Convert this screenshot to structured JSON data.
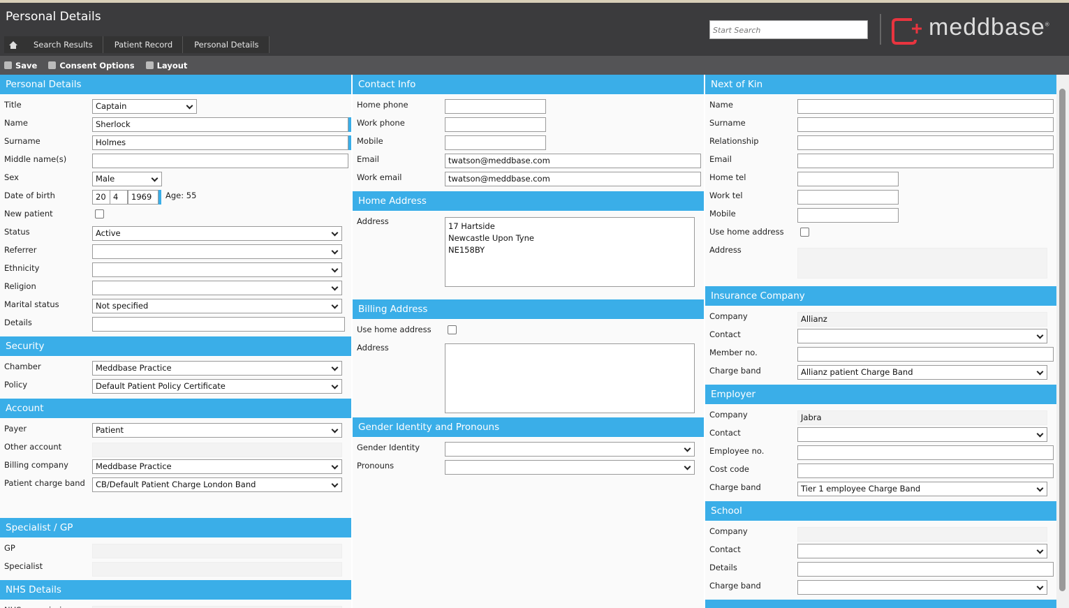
{
  "header": {
    "title": "Personal Details",
    "breadcrumbs": [
      "Search Results",
      "Patient Record",
      "Personal Details"
    ],
    "search_placeholder": "Start Search",
    "logo": "meddbase",
    "logo_mark": "®"
  },
  "toolbar": [
    "Save",
    "Consent Options",
    "Layout"
  ],
  "columns": [
    {
      "sections": [
        {
          "title": "Personal Details",
          "fields": [
            {
              "label": "Title",
              "type": "select",
              "value": "Captain"
            },
            {
              "label": "Name",
              "type": "text",
              "value": "Sherlock",
              "required": true
            },
            {
              "label": "Surname",
              "type": "text",
              "value": "Holmes",
              "required": true
            },
            {
              "label": "Middle name(s)",
              "type": "text"
            },
            {
              "label": "Sex",
              "type": "select",
              "value": "Male"
            },
            {
              "label": "Date of birth",
              "type": "dob",
              "day": "20",
              "month": "4",
              "year": "1969",
              "age": "Age: 55",
              "required": true
            },
            {
              "label": "New patient",
              "type": "checkbox"
            },
            {
              "label": "Status",
              "type": "select",
              "value": "Active"
            },
            {
              "label": "Referrer",
              "type": "select"
            },
            {
              "label": "Ethnicity",
              "type": "select"
            },
            {
              "label": "Religion",
              "type": "select"
            },
            {
              "label": "Marital status",
              "type": "select",
              "value": "Not specified"
            },
            {
              "label": "Details",
              "type": "text"
            }
          ]
        },
        {
          "title": "Security",
          "fields": [
            {
              "label": "Chamber",
              "type": "select",
              "value": "Meddbase Practice"
            },
            {
              "label": "Policy",
              "type": "select",
              "value": "Default Patient Policy Certificate"
            }
          ]
        },
        {
          "title": "Account",
          "fields": [
            {
              "label": "Payer",
              "type": "select",
              "value": "Patient"
            },
            {
              "label": "Other account",
              "type": "readonly"
            },
            {
              "label": "Billing company",
              "type": "select",
              "value": "Meddbase Practice"
            },
            {
              "label": "Patient charge band",
              "type": "select",
              "value": "CB/Default Patient Charge London Band"
            }
          ]
        },
        {
          "title": "Specialist / GP",
          "fields": [
            {
              "label": "GP",
              "type": "readonly"
            },
            {
              "label": "Specialist",
              "type": "readonly"
            }
          ]
        },
        {
          "title": "NHS Details",
          "fields": [
            {
              "label": "NHS commissioner",
              "type": "readonly"
            }
          ]
        }
      ]
    },
    {
      "sections": [
        {
          "title": "Contact Info",
          "fields": [
            {
              "label": "Home phone",
              "type": "text"
            },
            {
              "label": "Work phone",
              "type": "text"
            },
            {
              "label": "Mobile",
              "type": "text"
            },
            {
              "label": "Email",
              "type": "text",
              "value": "twatson@meddbase.com"
            },
            {
              "label": "Work email",
              "type": "text",
              "value": "twatson@meddbase.com"
            }
          ]
        },
        {
          "title": "Home Address",
          "fields": [
            {
              "label": "Address",
              "type": "textarea",
              "lines": [
                "17 Hartside",
                "Newcastle Upon Tyne",
                "NE158BY"
              ]
            }
          ]
        },
        {
          "title": "Billing Address",
          "fields": [
            {
              "label": "Use home address",
              "type": "checkbox"
            },
            {
              "label": "Address",
              "type": "textarea"
            }
          ]
        },
        {
          "title": "Gender Identity and Pronouns",
          "fields": [
            {
              "label": "Gender Identity",
              "type": "select"
            },
            {
              "label": "Pronouns",
              "type": "select"
            }
          ]
        }
      ]
    },
    {
      "sections": [
        {
          "title": "Next of Kin",
          "fields": [
            {
              "label": "Name",
              "type": "text"
            },
            {
              "label": "Surname",
              "type": "text"
            },
            {
              "label": "Relationship",
              "type": "text"
            },
            {
              "label": "Email",
              "type": "text"
            },
            {
              "label": "Home tel",
              "type": "text"
            },
            {
              "label": "Work tel",
              "type": "text"
            },
            {
              "label": "Mobile",
              "type": "text"
            },
            {
              "label": "Use home address",
              "type": "checkbox"
            },
            {
              "label": "Address",
              "type": "readonly"
            }
          ]
        },
        {
          "title": "Insurance Company",
          "fields": [
            {
              "label": "Company",
              "type": "readonly",
              "value": "Allianz"
            },
            {
              "label": "Contact",
              "type": "select"
            },
            {
              "label": "Member no.",
              "type": "text"
            },
            {
              "label": "Charge band",
              "type": "select",
              "value": "Allianz patient Charge Band"
            }
          ]
        },
        {
          "title": "Employer",
          "fields": [
            {
              "label": "Company",
              "type": "readonly",
              "value": "Jabra"
            },
            {
              "label": "Contact",
              "type": "select"
            },
            {
              "label": "Employee no.",
              "type": "text"
            },
            {
              "label": "Cost code",
              "type": "text"
            },
            {
              "label": "Charge band",
              "type": "select",
              "value": "Tier 1 employee Charge Band"
            }
          ]
        },
        {
          "title": "School",
          "fields": [
            {
              "label": "Company",
              "type": "readonly"
            },
            {
              "label": "Contact",
              "type": "select"
            },
            {
              "label": "Details",
              "type": "text"
            },
            {
              "label": "Charge band",
              "type": "select"
            }
          ]
        }
      ]
    }
  ]
}
